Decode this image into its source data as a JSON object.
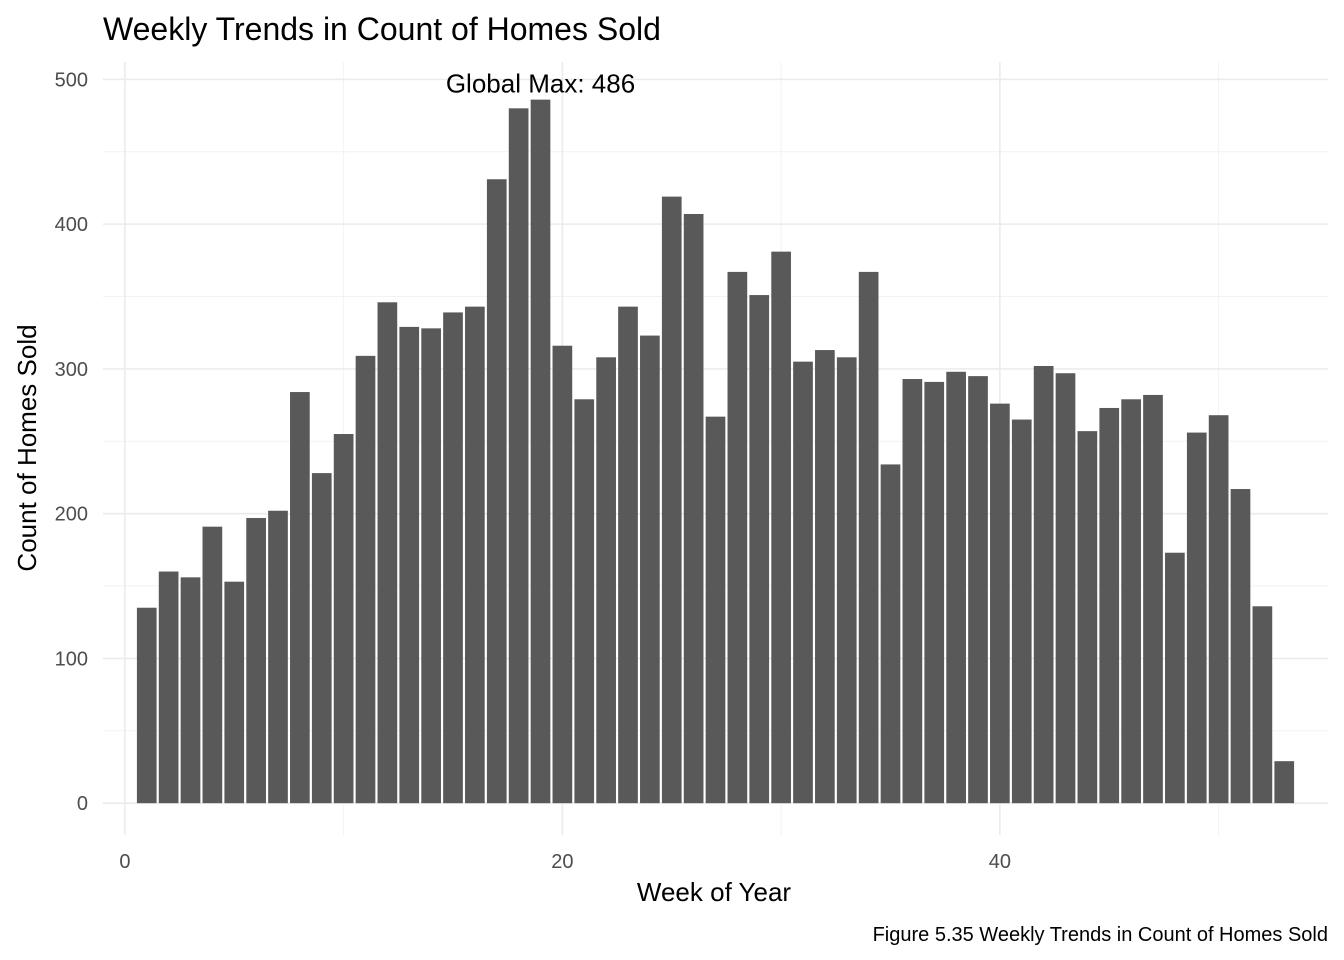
{
  "chart_data": {
    "type": "bar",
    "title": "Weekly Trends in Count of Homes Sold",
    "xlabel": "Week of Year",
    "ylabel": "Count of Homes Sold",
    "caption": "Figure 5.35 Weekly Trends in Count of Homes Sold",
    "annotation": {
      "text": "Global Max: 486",
      "x": 19,
      "y": 486
    },
    "xlim": [
      -1,
      55
    ],
    "ylim": [
      -22,
      512
    ],
    "x_ticks": [
      0,
      20,
      40
    ],
    "x_tick_labels": [
      "0",
      "20",
      "40"
    ],
    "y_ticks": [
      0,
      100,
      200,
      300,
      400,
      500
    ],
    "y_tick_labels": [
      "0",
      "100",
      "200",
      "300",
      "400",
      "500"
    ],
    "grid": true,
    "bar_color": "#595959",
    "x": [
      1,
      2,
      3,
      4,
      5,
      6,
      7,
      8,
      9,
      10,
      11,
      12,
      13,
      14,
      15,
      16,
      17,
      18,
      19,
      20,
      21,
      22,
      23,
      24,
      25,
      26,
      27,
      28,
      29,
      30,
      31,
      32,
      33,
      34,
      35,
      36,
      37,
      38,
      39,
      40,
      41,
      42,
      43,
      44,
      45,
      46,
      47,
      48,
      49,
      50,
      51,
      52,
      53
    ],
    "values": [
      135,
      160,
      156,
      191,
      153,
      197,
      202,
      284,
      228,
      255,
      309,
      346,
      329,
      328,
      339,
      343,
      431,
      480,
      486,
      316,
      279,
      308,
      343,
      323,
      419,
      407,
      267,
      367,
      351,
      381,
      305,
      313,
      308,
      367,
      234,
      293,
      291,
      298,
      295,
      276,
      265,
      302,
      297,
      257,
      273,
      279,
      282,
      173,
      256,
      268,
      217,
      136,
      29
    ]
  }
}
